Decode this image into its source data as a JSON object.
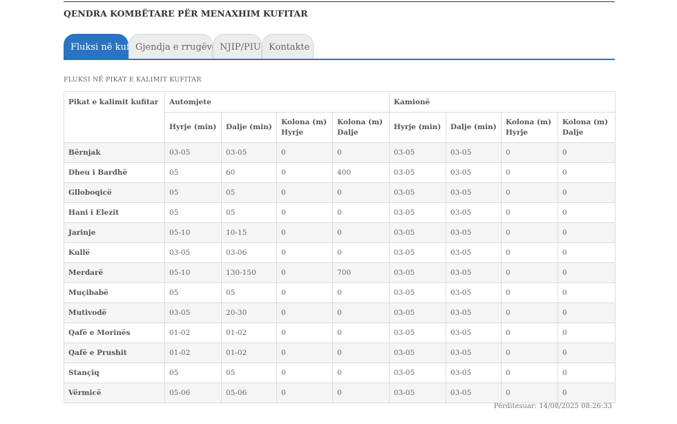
{
  "header": {
    "title": "QENDRA KOMBËTARE PËR MENAXHIM KUFITAR"
  },
  "tabs": [
    {
      "label": "Fluksi në kufi",
      "active": true
    },
    {
      "label": "Gjendja e rrugëve",
      "active": false
    },
    {
      "label": "NJIP/PIU",
      "active": false
    },
    {
      "label": "Kontakte",
      "active": false
    }
  ],
  "section": {
    "title": "FLUKSI NË PIKAT E KALIMIT KUFITAR"
  },
  "table": {
    "place_header": "Pikat e kalimit kufitar",
    "group_cars": "Automjete",
    "group_trucks": "Kamionë",
    "columns": [
      "Hyrje (min)",
      "Dalje (min)",
      "Kolona (m) Hyrje",
      "Kolona (m) Dalje",
      "Hyrje (min)",
      "Dalje (min)",
      "Kolona (m) Hyrje",
      "Kolona (m) Dalje"
    ],
    "rows": [
      [
        "Bërnjak",
        "03-05",
        "03-05",
        "0",
        "0",
        "03-05",
        "03-05",
        "0",
        "0"
      ],
      [
        "Dheu i Bardhë",
        "05",
        "60",
        "0",
        "400",
        "03-05",
        "03-05",
        "0",
        "0"
      ],
      [
        "Glloboqicë",
        "05",
        "05",
        "0",
        "0",
        "03-05",
        "03-05",
        "0",
        "0"
      ],
      [
        "Hani i Elezit",
        "05",
        "05",
        "0",
        "0",
        "03-05",
        "03-05",
        "0",
        "0"
      ],
      [
        "Jarinje",
        "05-10",
        "10-15",
        "0",
        "0",
        "03-05",
        "03-05",
        "0",
        "0"
      ],
      [
        "Kullë",
        "03-05",
        "03-06",
        "0",
        "0",
        "03-05",
        "03-05",
        "0",
        "0"
      ],
      [
        "Merdarë",
        "05-10",
        "130-150",
        "0",
        "700",
        "03-05",
        "03-05",
        "0",
        "0"
      ],
      [
        "Muçibabë",
        "05",
        "05",
        "0",
        "0",
        "03-05",
        "03-05",
        "0",
        "0"
      ],
      [
        "Mutivodë",
        "03-05",
        "20-30",
        "0",
        "0",
        "03-05",
        "03-05",
        "0",
        "0"
      ],
      [
        "Qafë e Morinës",
        "01-02",
        "01-02",
        "0",
        "0",
        "03-05",
        "03-05",
        "0",
        "0"
      ],
      [
        "Qafë e Prushit",
        "01-02",
        "01-02",
        "0",
        "0",
        "03-05",
        "03-05",
        "0",
        "0"
      ],
      [
        "Stançiq",
        "05",
        "05",
        "0",
        "0",
        "03-05",
        "03-05",
        "0",
        "0"
      ],
      [
        "Vërmicë",
        "05-06",
        "05-06",
        "0",
        "0",
        "03-05",
        "03-05",
        "0",
        "0"
      ]
    ]
  },
  "footer": {
    "updated": "Përditesuar: 14/08/2025 08:26:33"
  },
  "colors": {
    "accent": "#2a73c3",
    "tab_inactive": "#ececec",
    "row_stripe": "#f5f5f5"
  }
}
